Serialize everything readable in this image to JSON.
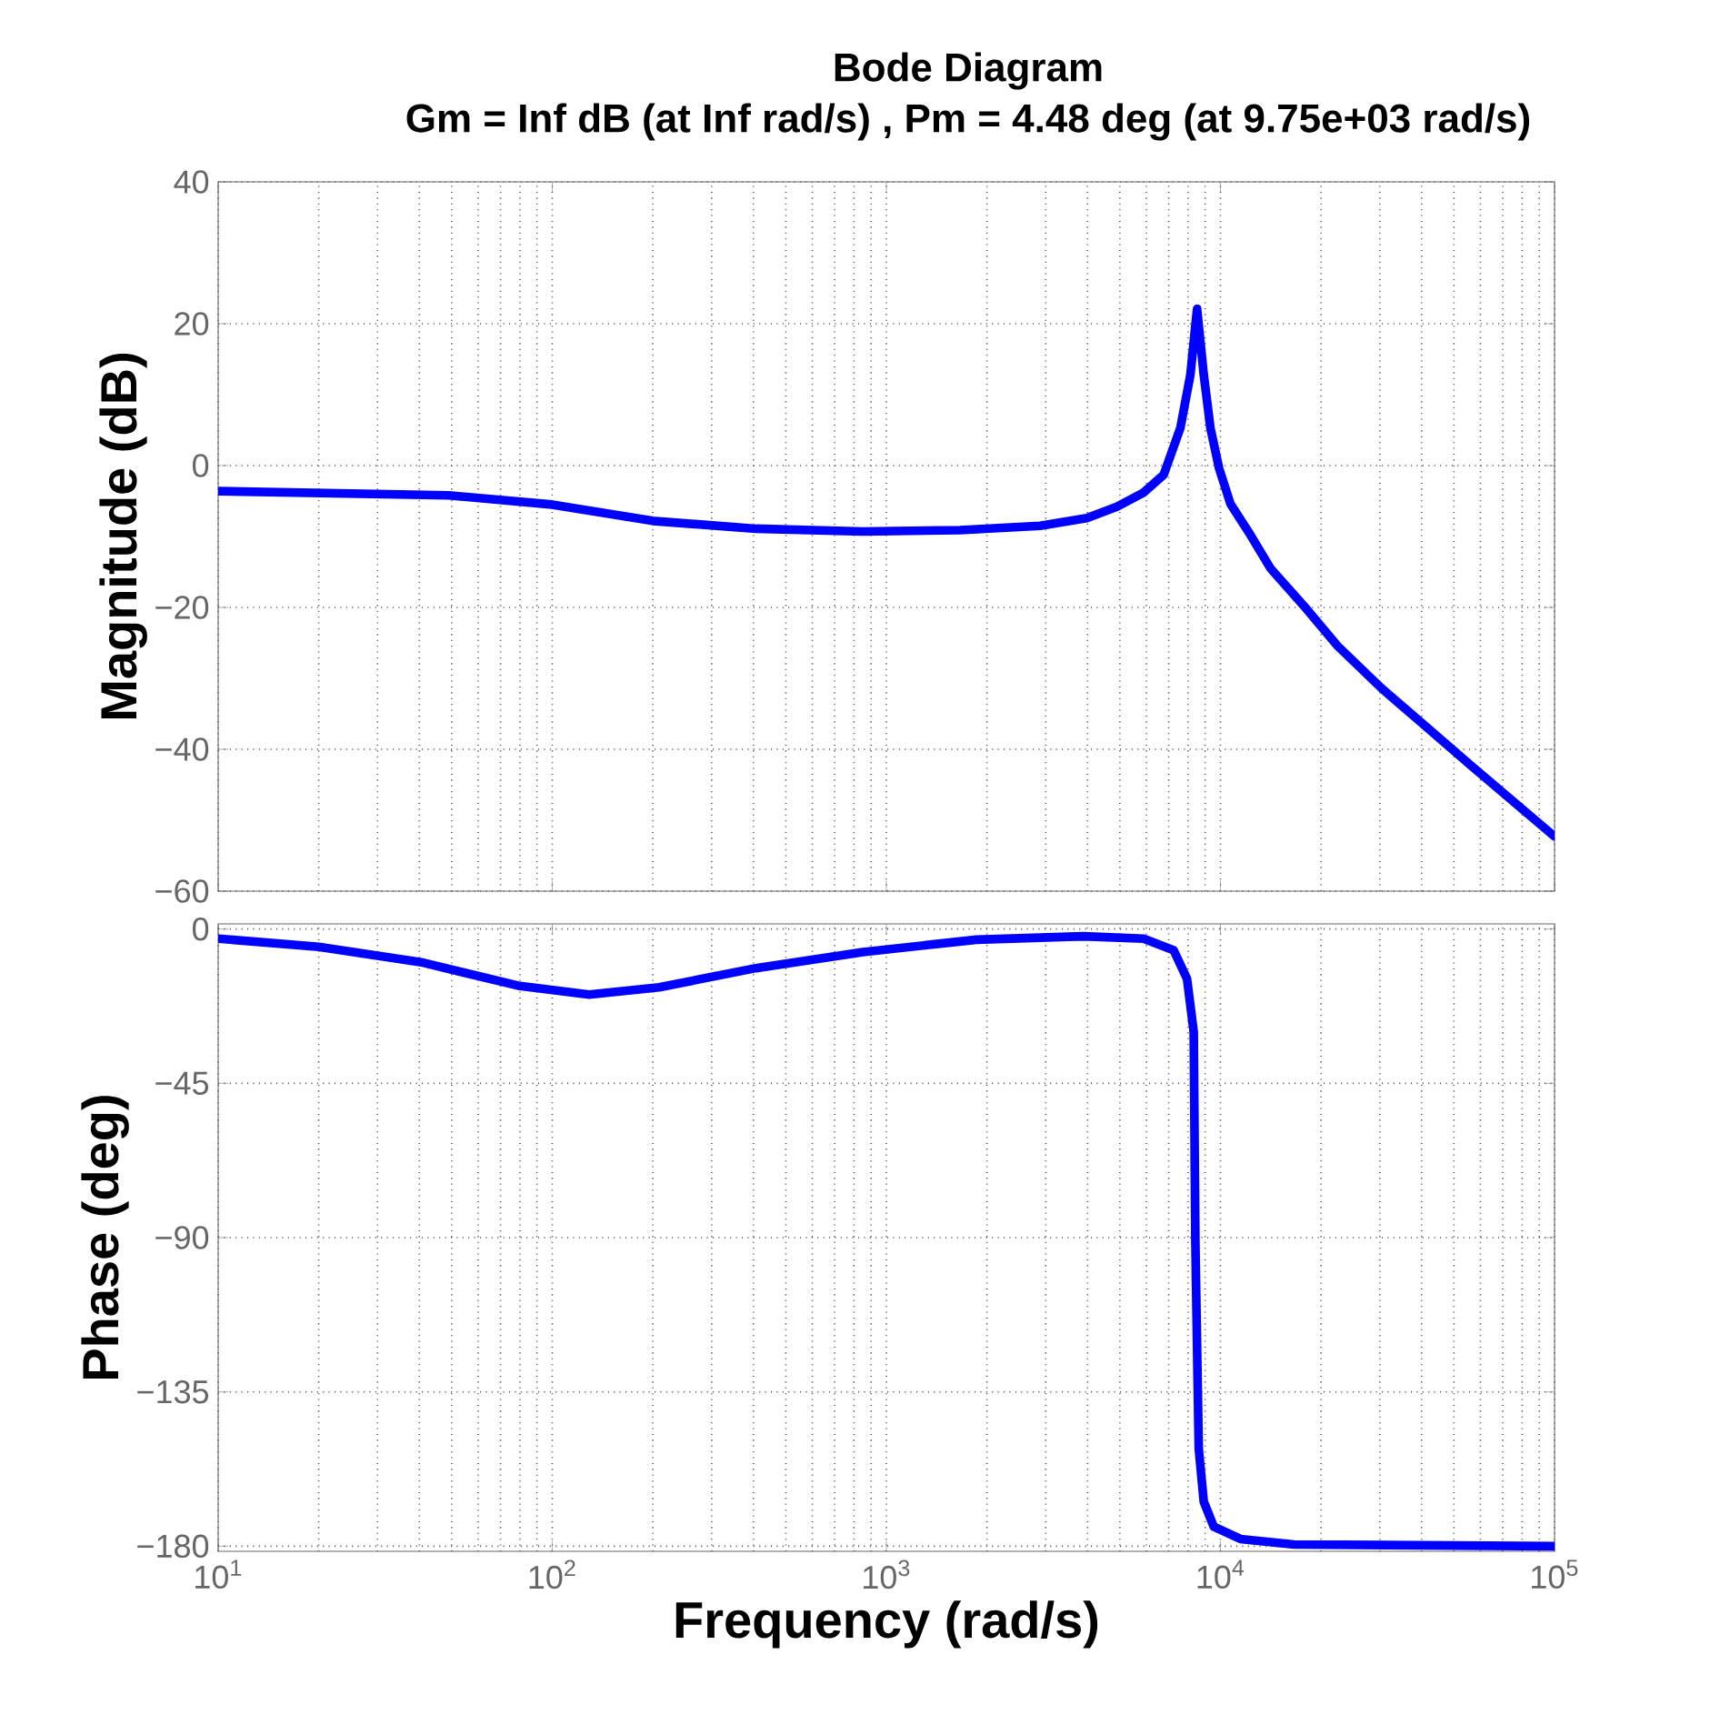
{
  "chart_data": [
    {
      "type": "line",
      "title": "Bode Diagram",
      "subtitle": "Gm = Inf dB (at Inf rad/s) ,  Pm = 4.48 deg (at 9.75e+03 rad/s)",
      "ylabel": "Magnitude (dB)",
      "log": "x",
      "grid": true,
      "tick_labels": "y",
      "line_style": "solid",
      "xlim": [
        10,
        100000
      ],
      "xticks": [
        10,
        100,
        1000,
        10000,
        100000
      ],
      "ylim": [
        -60,
        40
      ],
      "yticks": [
        {
          "value": -60,
          "label": "−60"
        },
        {
          "value": -40,
          "label": "−40"
        },
        {
          "value": -20,
          "label": "−20"
        },
        0,
        20,
        40
      ],
      "series": [
        {
          "color": "#0000ff",
          "x": [
            10,
            49,
            100,
            200,
            407,
            851,
            1660,
            2884,
            3981,
            4898,
            5888,
            6761,
            7586,
            8128,
            8511,
            8913,
            9333,
            9908,
            10715,
            12303,
            14125,
            17783,
            22387,
            30200,
            40738,
            56234,
            100000
          ],
          "values": [
            -3.6,
            -4.2,
            -5.5,
            -7.8,
            -8.9,
            -9.3,
            -9.1,
            -8.5,
            -7.4,
            -5.8,
            -3.8,
            -1.3,
            5.3,
            12.8,
            22.1,
            12.8,
            5.3,
            -0.4,
            -5.4,
            -9.8,
            -14.5,
            -19.8,
            -25.4,
            -31.3,
            -36.6,
            -42.3,
            -52.3
          ]
        }
      ]
    },
    {
      "type": "line",
      "ylabel": "Phase (deg)",
      "xlabel": "Frequency  (rad/s)",
      "log": "x",
      "grid": true,
      "line_style": "solid",
      "xlim": [
        10,
        100000
      ],
      "xticks": [
        {
          "value": 10,
          "label": "10$^{1}$"
        },
        {
          "value": 100,
          "label": "10$^{2}$"
        },
        {
          "value": 1000,
          "label": "10$^{3}$"
        },
        {
          "value": 10000,
          "label": "10$^{4}$"
        },
        {
          "value": 100000,
          "label": "10$^{5}$"
        }
      ],
      "ylim": [
        -181.5,
        1.5
      ],
      "yticks": [
        {
          "value": -180,
          "label": "−180"
        },
        {
          "value": -135,
          "label": "−135"
        },
        {
          "value": -90,
          "label": "−90"
        },
        {
          "value": -45,
          "label": "−45"
        },
        0
      ],
      "series": [
        {
          "color": "#0000ff",
          "x": [
            10,
            20,
            41,
            79,
            129,
            209,
            407,
            851,
            1862,
            3890,
            5888,
            7244,
            7943,
            8318,
            8414,
            8610,
            8913,
            9550,
            11482,
            16596,
            100000
          ],
          "values": [
            -2.8,
            -5.2,
            -9.8,
            -16.5,
            -19.1,
            -17,
            -11.4,
            -6.7,
            -3.1,
            -2.1,
            -2.8,
            -6.2,
            -14.5,
            -30,
            -92,
            -151.5,
            -167,
            -174.3,
            -177.9,
            -179.5,
            -180
          ]
        }
      ]
    }
  ]
}
